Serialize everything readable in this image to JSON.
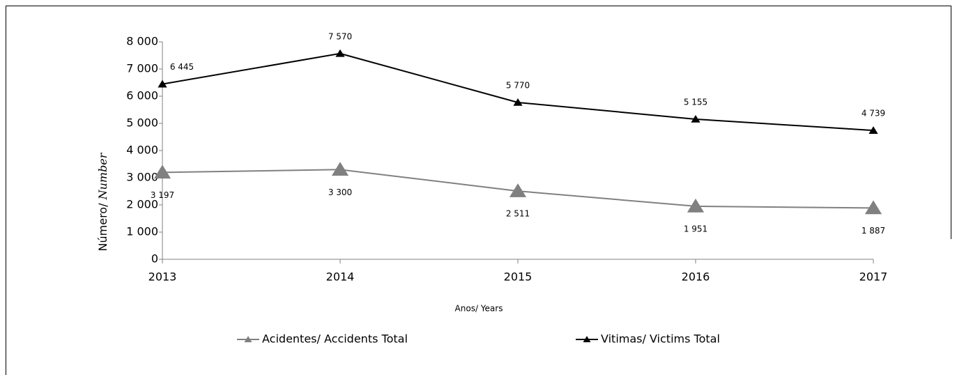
{
  "chart_data": {
    "type": "line",
    "y_label": [
      "Número/",
      "Number"
    ],
    "x_label": "Anos/ Years",
    "categories": [
      "2013",
      "2014",
      "2015",
      "2016",
      "2017"
    ],
    "series": [
      {
        "name": "Acidentes/ Accidents Total",
        "color": "#808080",
        "marker": "triangle-large",
        "values": [
          3197,
          3300,
          2511,
          1951,
          1887
        ],
        "value_labels": [
          "3 197",
          "3 300",
          "2 511",
          "1 951",
          "1 887"
        ]
      },
      {
        "name": "Vitimas/ Victims Total",
        "color": "#000000",
        "marker": "triangle-small",
        "values": [
          6445,
          7570,
          5770,
          5155,
          4739
        ],
        "value_labels": [
          "6 445",
          "7 570",
          "5 770",
          "5 155",
          "4 739"
        ]
      }
    ],
    "ylim": [
      0,
      8000
    ],
    "yticks": [
      0,
      {
        "value": 1000,
        "label": "1 000"
      },
      {
        "value": 2000,
        "label": "2 000"
      },
      {
        "value": 3000,
        "label": "3 000"
      },
      {
        "value": 4000,
        "label": "4 000"
      },
      {
        "value": 5000,
        "label": "5 000"
      },
      {
        "value": 6000,
        "label": "6 000"
      },
      {
        "value": 7000,
        "label": "7 000"
      },
      {
        "value": 8000,
        "label": "8 000"
      }
    ],
    "grid": false,
    "legend": "bottom"
  }
}
